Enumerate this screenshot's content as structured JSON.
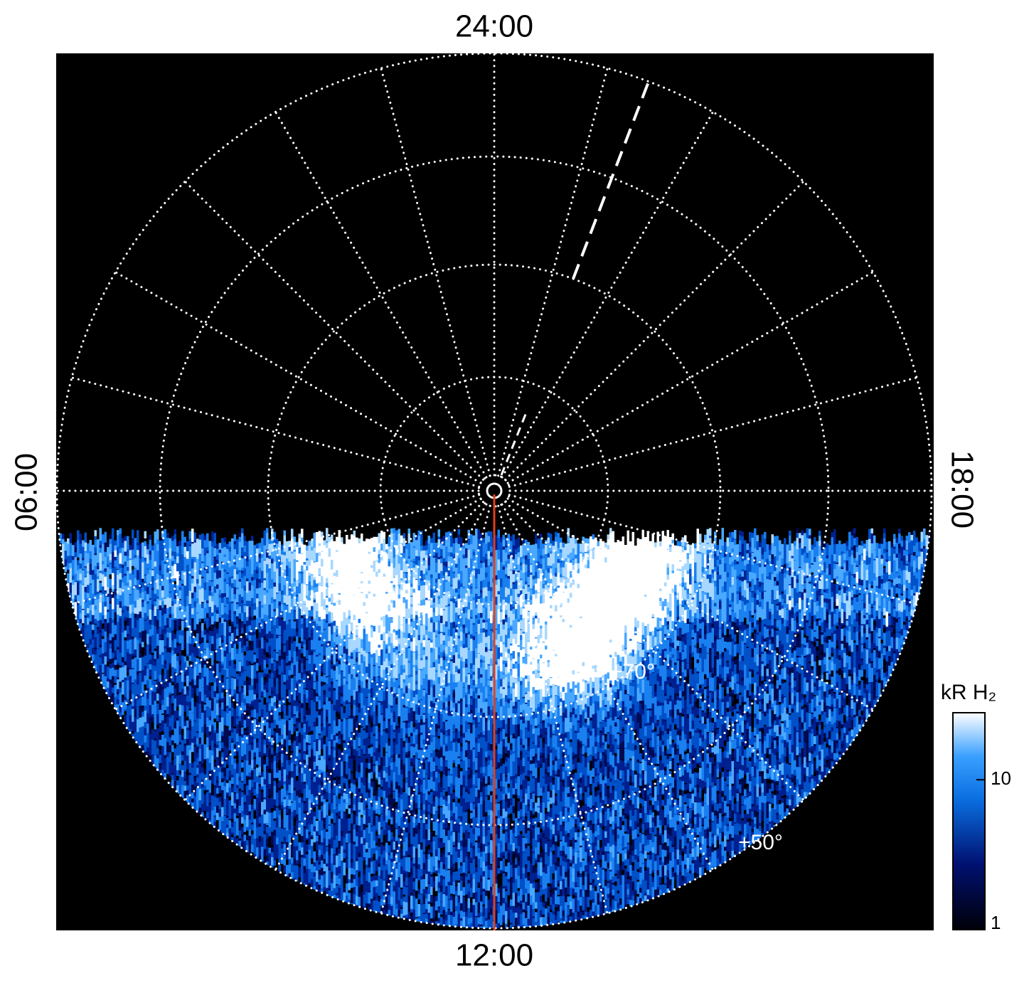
{
  "chart_data": {
    "type": "polar",
    "hour_labels": {
      "top": "24:00",
      "bottom": "12:00",
      "left": "06:00",
      "right": "18:00"
    },
    "latitude_labels": [
      "+70°",
      "+50°"
    ],
    "colorbar": {
      "title": "kR H₂",
      "scale": "log",
      "ylim": [
        1,
        28
      ],
      "yticks": [
        1,
        10
      ]
    }
  }
}
